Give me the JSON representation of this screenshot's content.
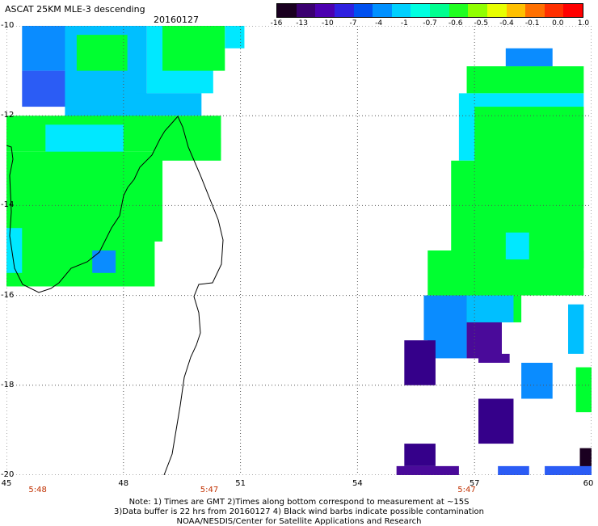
{
  "header": {
    "title": "ASCAT 25KM MLE-3 descending",
    "date": "20160127"
  },
  "colorbar": {
    "ticks": [
      "-16",
      "-13",
      "-10",
      "-7",
      "-4",
      "-1",
      "-0.7",
      "-0.6",
      "-0.5",
      "-0.4",
      "-0.1",
      "0.0",
      "1.0"
    ],
    "colors": [
      "#1a0020",
      "#3a0070",
      "#4b00b0",
      "#2e20e0",
      "#0050f0",
      "#0090ff",
      "#00d0ff",
      "#00ffe0",
      "#00ff90",
      "#20ff20",
      "#90ff00",
      "#e8ff00",
      "#ffc000",
      "#ff7000",
      "#ff3000",
      "#ff0000"
    ]
  },
  "map": {
    "lon_range": [
      45,
      60
    ],
    "lat_range": [
      -20,
      -10
    ],
    "lon_ticks": [
      "45",
      "48",
      "51",
      "54",
      "57",
      "60"
    ],
    "lat_ticks": [
      "-10",
      "-12",
      "-14",
      "-16",
      "-18",
      "-20"
    ],
    "times": [
      {
        "lon": 45.8,
        "label": "5:48"
      },
      {
        "lon": 50.2,
        "label": "5:47"
      },
      {
        "lon": 56.8,
        "label": "5:47"
      }
    ],
    "colors": {
      "green": "#00ff30",
      "cyan": "#00e8ff",
      "lightblue": "#00bfff",
      "blue": "#0a8cff",
      "deepblue": "#2b5cf5",
      "purple": "#4a0a9a",
      "darkpurple": "#35008a",
      "navy": "#1a0020"
    }
  },
  "notes": {
    "line1": "Note: 1) Times are GMT 2)Times along bottom correspond to measurement at ~15S",
    "line2": "3)Data buffer is 22 hrs from 20160127 4) Black wind barbs indicate possible contamination",
    "line3": "NOAA/NESDIS/Center for Satellite Applications and Research"
  }
}
